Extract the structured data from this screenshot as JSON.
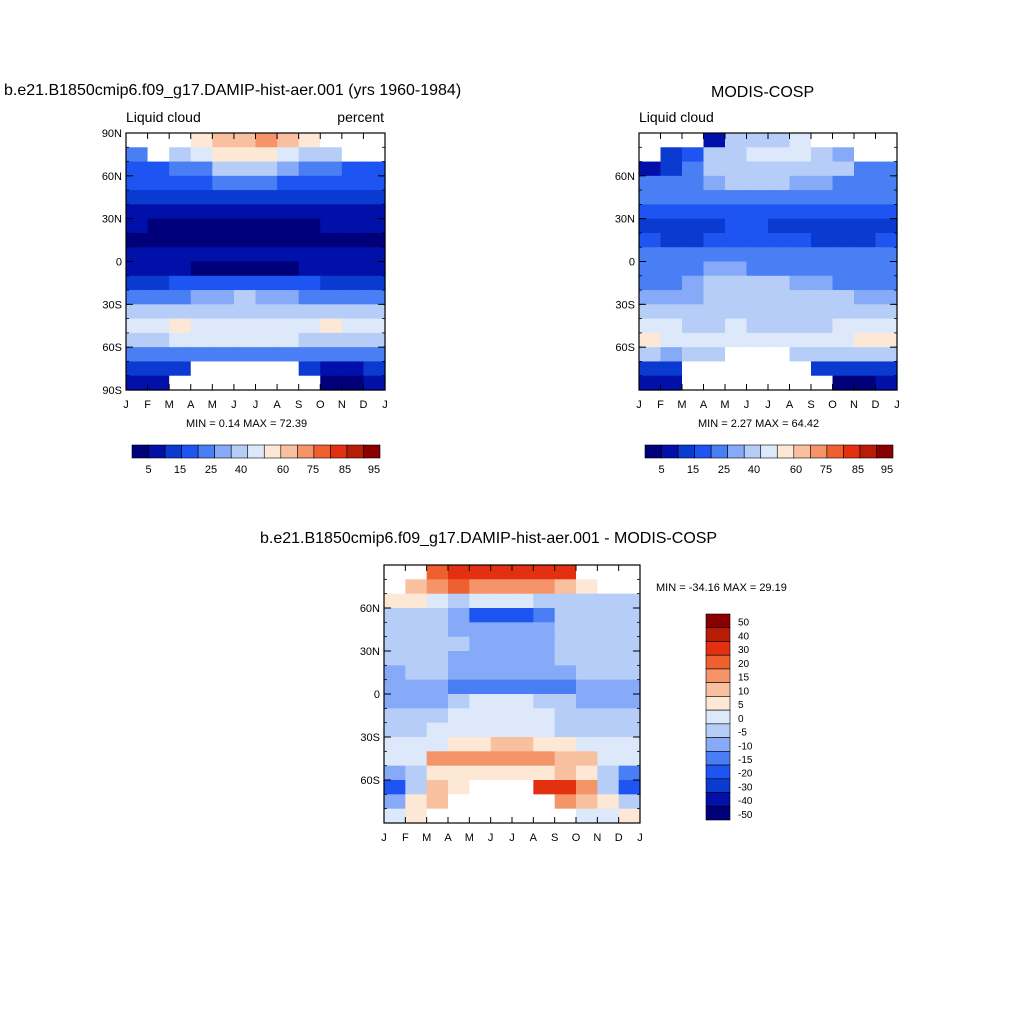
{
  "colors": {
    "abs_palette": [
      "#00007a",
      "#0010a8",
      "#0a3ad0",
      "#1e54f2",
      "#4a7ef5",
      "#86aaf7",
      "#b6cdf8",
      "#dde9fb",
      "#fde8d6",
      "#f9c0a0",
      "#f49468",
      "#ef6030",
      "#e23010",
      "#b81c06",
      "#8a0000"
    ],
    "diff_palette": [
      "#00007a",
      "#0010a8",
      "#0a3ad0",
      "#1e54f2",
      "#4a7ef5",
      "#86aaf7",
      "#b6cdf8",
      "#dde9fb",
      "#fde8d6",
      "#f9c0a0",
      "#f49468",
      "#ef6030",
      "#e23010",
      "#b81c06",
      "#8a0000"
    ],
    "missing": "#ffffff"
  },
  "chart_data": [
    {
      "type": "heatmap",
      "title": "b.e21.B1850cmip6.f09_g17.DAMIP-hist-aer.001 (yrs 1960-1984)",
      "left_label": "Liquid cloud",
      "right_label": "percent",
      "x_tick_labels": [
        "J",
        "F",
        "M",
        "A",
        "M",
        "J",
        "J",
        "A",
        "S",
        "O",
        "N",
        "D",
        "J"
      ],
      "y_tick_labels": [
        "90N",
        "60N",
        "30N",
        "0",
        "30S",
        "60S",
        "90S"
      ],
      "ylim": [
        -90,
        90
      ],
      "minmax_text": "MIN =   0.14 MAX =  72.39",
      "colorbar_labels": [
        "5",
        "15",
        "25",
        "40",
        "60",
        "75",
        "85",
        "95"
      ],
      "lat_rows": [
        85,
        75,
        65,
        55,
        45,
        35,
        25,
        15,
        5,
        -5,
        -15,
        -25,
        -35,
        -45,
        -55,
        -65,
        -75,
        -85
      ],
      "values": [
        [
          null,
          null,
          null,
          54,
          60,
          68,
          72,
          65,
          55,
          null,
          null,
          null
        ],
        [
          22,
          null,
          36,
          40,
          52,
          56,
          55,
          48,
          36,
          30,
          null,
          null
        ],
        [
          18,
          18,
          20,
          24,
          30,
          34,
          32,
          28,
          24,
          20,
          18,
          18
        ],
        [
          15,
          15,
          16,
          17,
          20,
          22,
          20,
          18,
          16,
          15,
          15,
          15
        ],
        [
          12,
          12,
          12,
          13,
          13,
          14,
          13,
          12,
          12,
          12,
          12,
          12
        ],
        [
          8,
          8,
          7,
          6,
          5,
          5,
          5,
          6,
          7,
          8,
          8,
          8
        ],
        [
          5,
          4,
          4,
          3,
          2,
          2,
          2,
          3,
          4,
          5,
          5,
          5
        ],
        [
          4,
          4,
          4,
          3,
          3,
          3,
          3,
          3,
          4,
          4,
          4,
          4
        ],
        [
          6,
          6,
          7,
          8,
          8,
          7,
          7,
          8,
          8,
          7,
          6,
          6
        ],
        [
          8,
          8,
          6,
          4,
          3,
          3,
          3,
          4,
          6,
          7,
          8,
          8
        ],
        [
          14,
          14,
          15,
          16,
          16,
          16,
          16,
          16,
          15,
          14,
          14,
          14
        ],
        [
          20,
          20,
          22,
          26,
          28,
          30,
          28,
          26,
          22,
          20,
          20,
          20
        ],
        [
          32,
          32,
          34,
          36,
          38,
          38,
          38,
          36,
          34,
          32,
          32,
          32
        ],
        [
          40,
          40,
          52,
          46,
          46,
          46,
          46,
          46,
          44,
          52,
          42,
          40
        ],
        [
          38,
          38,
          40,
          40,
          40,
          40,
          40,
          40,
          38,
          38,
          36,
          36
        ],
        [
          22,
          22,
          20,
          24,
          22,
          20,
          20,
          24,
          24,
          22,
          20,
          22
        ],
        [
          12,
          10,
          10,
          null,
          null,
          null,
          null,
          null,
          12,
          8,
          8,
          10
        ],
        [
          6,
          6,
          null,
          null,
          null,
          null,
          null,
          null,
          null,
          2,
          4,
          6
        ]
      ]
    },
    {
      "type": "heatmap",
      "title": "MODIS-COSP",
      "left_label": "Liquid cloud",
      "x_tick_labels": [
        "J",
        "F",
        "M",
        "A",
        "M",
        "J",
        "J",
        "A",
        "S",
        "O",
        "N",
        "D",
        "J"
      ],
      "y_tick_labels": [
        "60N",
        "30N",
        "0",
        "30S",
        "60S"
      ],
      "ylim": [
        -90,
        90
      ],
      "minmax_text": "MIN =   2.27 MAX =  64.42",
      "colorbar_labels": [
        "5",
        "15",
        "25",
        "40",
        "60",
        "75",
        "85",
        "95"
      ],
      "lat_rows": [
        85,
        75,
        65,
        55,
        45,
        35,
        25,
        15,
        5,
        -5,
        -15,
        -25,
        -35,
        -45,
        -55,
        -65,
        -75,
        -85
      ],
      "values": [
        [
          null,
          null,
          null,
          6,
          30,
          36,
          36,
          40,
          null,
          null,
          null,
          null
        ],
        [
          null,
          14,
          18,
          30,
          38,
          42,
          44,
          40,
          34,
          26,
          null,
          null
        ],
        [
          8,
          14,
          24,
          34,
          36,
          36,
          36,
          34,
          32,
          30,
          24,
          22
        ],
        [
          22,
          22,
          24,
          28,
          30,
          30,
          30,
          28,
          26,
          24,
          24,
          22
        ],
        [
          20,
          20,
          22,
          22,
          24,
          24,
          22,
          22,
          22,
          20,
          20,
          20
        ],
        [
          18,
          16,
          16,
          16,
          18,
          18,
          16,
          16,
          16,
          16,
          16,
          16
        ],
        [
          14,
          14,
          14,
          14,
          15,
          16,
          14,
          14,
          13,
          12,
          10,
          12
        ],
        [
          16,
          14,
          14,
          16,
          18,
          18,
          16,
          16,
          14,
          14,
          14,
          16
        ],
        [
          20,
          22,
          22,
          24,
          24,
          22,
          22,
          22,
          20,
          20,
          20,
          20
        ],
        [
          22,
          24,
          24,
          26,
          26,
          24,
          24,
          24,
          22,
          22,
          22,
          22
        ],
        [
          24,
          24,
          28,
          30,
          32,
          30,
          30,
          28,
          26,
          24,
          22,
          22
        ],
        [
          26,
          26,
          28,
          30,
          32,
          34,
          34,
          34,
          32,
          30,
          28,
          26
        ],
        [
          30,
          30,
          34,
          36,
          38,
          38,
          38,
          38,
          36,
          34,
          32,
          30
        ],
        [
          40,
          40,
          38,
          38,
          40,
          38,
          38,
          38,
          38,
          40,
          44,
          42
        ],
        [
          52,
          44,
          40,
          40,
          40,
          40,
          40,
          40,
          40,
          44,
          52,
          54
        ],
        [
          30,
          28,
          30,
          30,
          null,
          null,
          null,
          30,
          34,
          36,
          38,
          36
        ],
        [
          12,
          12,
          null,
          null,
          null,
          null,
          null,
          null,
          14,
          10,
          10,
          10
        ],
        [
          6,
          6,
          null,
          null,
          null,
          null,
          null,
          null,
          null,
          4,
          4,
          5
        ]
      ]
    },
    {
      "type": "heatmap",
      "title": "b.e21.B1850cmip6.f09_g17.DAMIP-hist-aer.001 - MODIS-COSP",
      "x_tick_labels": [
        "J",
        "F",
        "M",
        "A",
        "M",
        "J",
        "J",
        "A",
        "S",
        "O",
        "N",
        "D",
        "J"
      ],
      "y_tick_labels": [
        "60N",
        "30N",
        "0",
        "30S",
        "60S"
      ],
      "ylim": [
        -90,
        90
      ],
      "minmax_text": "MIN = -34.16 MAX =  29.19",
      "colorbar_labels": [
        "50",
        "40",
        "30",
        "20",
        "15",
        "10",
        "5",
        "0",
        "-5",
        "-10",
        "-15",
        "-20",
        "-30",
        "-40",
        "-50"
      ],
      "lat_rows": [
        85,
        75,
        65,
        55,
        45,
        35,
        25,
        15,
        5,
        -5,
        -15,
        -25,
        -35,
        -45,
        -55,
        -65,
        -75,
        -85
      ],
      "values": [
        [
          null,
          null,
          18,
          22,
          24,
          26,
          28,
          26,
          22,
          null,
          null,
          null
        ],
        [
          null,
          6,
          14,
          18,
          14,
          14,
          12,
          10,
          8,
          4,
          null,
          null
        ],
        [
          4,
          2,
          -2,
          -6,
          -4,
          -2,
          -4,
          -6,
          -6,
          -8,
          -10,
          -10
        ],
        [
          -6,
          -8,
          -8,
          -14,
          -22,
          -24,
          -22,
          -16,
          -10,
          -8,
          -8,
          -8
        ],
        [
          -8,
          -8,
          -10,
          -12,
          -12,
          -12,
          -12,
          -12,
          -10,
          -10,
          -8,
          -8
        ],
        [
          -10,
          -8,
          -10,
          -10,
          -12,
          -12,
          -12,
          -12,
          -10,
          -8,
          -8,
          -8
        ],
        [
          -10,
          -10,
          -10,
          -12,
          -14,
          -14,
          -12,
          -12,
          -10,
          -8,
          -8,
          -8
        ],
        [
          -12,
          -10,
          -10,
          -13,
          -14,
          -14,
          -14,
          -14,
          -12,
          -10,
          -10,
          -10
        ],
        [
          -14,
          -14,
          -14,
          -16,
          -16,
          -16,
          -16,
          -16,
          -16,
          -14,
          -14,
          -14
        ],
        [
          -12,
          -12,
          -12,
          -6,
          -4,
          -4,
          -4,
          -6,
          -8,
          -12,
          -12,
          -12
        ],
        [
          -10,
          -10,
          -8,
          -4,
          -2,
          -2,
          -2,
          -4,
          -6,
          -8,
          -10,
          -10
        ],
        [
          -6,
          -6,
          -4,
          -2,
          -2,
          -2,
          -2,
          -4,
          -6,
          -6,
          -6,
          -6
        ],
        [
          -2,
          -2,
          -2,
          2,
          4,
          6,
          6,
          4,
          2,
          -2,
          -2,
          -2
        ],
        [
          -2,
          -2,
          10,
          10,
          10,
          10,
          10,
          10,
          8,
          8,
          -2,
          -2
        ],
        [
          -14,
          -6,
          2,
          2,
          2,
          2,
          2,
          4,
          6,
          4,
          -10,
          -16
        ],
        [
          -30,
          -8,
          6,
          4,
          null,
          null,
          null,
          20,
          24,
          10,
          -6,
          -26
        ],
        [
          -12,
          2,
          6,
          null,
          null,
          null,
          null,
          null,
          12,
          6,
          2,
          -8
        ],
        [
          -2,
          0,
          null,
          null,
          null,
          null,
          null,
          null,
          null,
          -2,
          -2,
          0
        ]
      ]
    }
  ]
}
